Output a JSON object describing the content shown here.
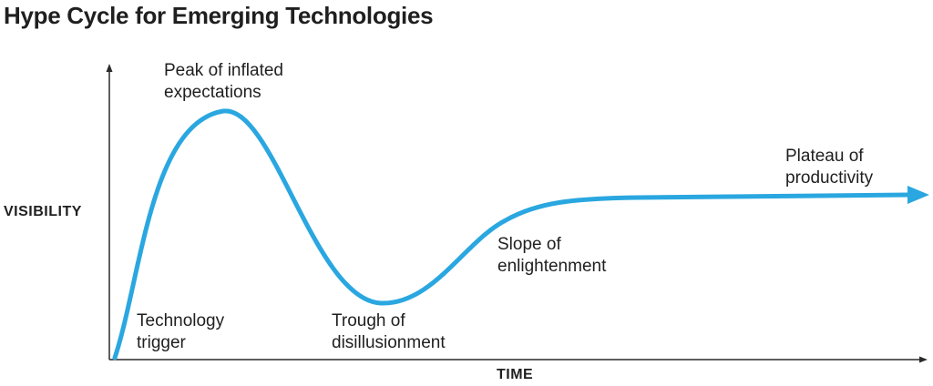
{
  "title": "Hype Cycle for Emerging Technologies",
  "axes": {
    "y_label": "VISIBILITY",
    "x_label": "TIME"
  },
  "phases": [
    {
      "line1": "Technology",
      "line2": "trigger"
    },
    {
      "line1": "Peak of inflated",
      "line2": "expectations"
    },
    {
      "line1": "Trough of",
      "line2": "disillusionment"
    },
    {
      "line1": "Slope of",
      "line2": "enlightenment"
    },
    {
      "line1": "Plateau of",
      "line2": "productivity"
    }
  ],
  "colors": {
    "curve": "#2aa7e0",
    "axis": "#2a2a2a",
    "text": "#1f1f1f"
  }
}
